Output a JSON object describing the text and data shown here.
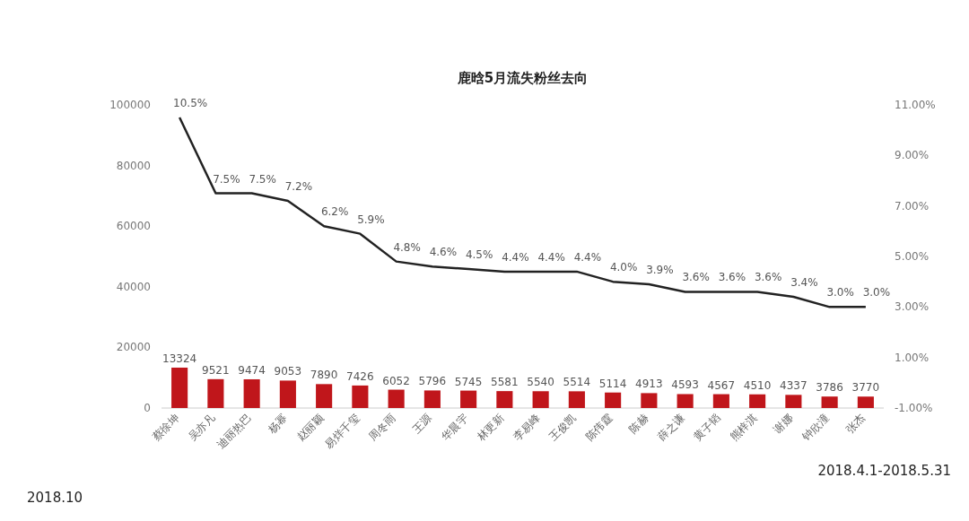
{
  "chart_data": {
    "type": "bar",
    "title": "鹿晗5月流失粉丝去向",
    "categories": [
      "蔡徐坤",
      "吴亦凡",
      "迪丽热巴",
      "杨幂",
      "赵丽颖",
      "易烊千玺",
      "周冬雨",
      "王源",
      "华晨宇",
      "林更新",
      "李易峰",
      "王俊凯",
      "陈伟霆",
      "陈赫",
      "薛之谦",
      "黄子韬",
      "熊梓淇",
      "谢娜",
      "钟欣潼",
      "张杰"
    ],
    "series": [
      {
        "color": "#c0161b",
        "values": [
          13324,
          9521,
          9474,
          9053,
          7890,
          7426,
          6052,
          5796,
          5745,
          5581,
          5540,
          5514,
          5114,
          4913,
          4593,
          4567,
          4510,
          4337,
          3786,
          3770
        ],
        "value_labels": [
          "13324",
          "9521",
          "9474",
          "9053",
          "7890",
          "7426",
          "6052",
          "5796",
          "5745",
          "5581",
          "5540",
          "5514",
          "5114",
          "4913",
          "4593",
          "4567",
          "4510",
          "4337",
          "3786",
          "3770"
        ]
      },
      {
        "type": "line",
        "axis": "y2",
        "color": "#222222",
        "values": [
          10.5,
          7.5,
          7.5,
          7.2,
          6.2,
          5.9,
          4.8,
          4.6,
          4.5,
          4.4,
          4.4,
          4.4,
          4.0,
          3.9,
          3.6,
          3.6,
          3.6,
          3.4,
          3.0,
          3.0
        ],
        "value_labels": [
          "10.5%",
          "7.5%",
          "7.5%",
          "7.2%",
          "6.2%",
          "5.9%",
          "4.8%",
          "4.6%",
          "4.5%",
          "4.4%",
          "4.4%",
          "4.4%",
          "4.0%",
          "3.9%",
          "3.6%",
          "3.6%",
          "3.6%",
          "3.4%",
          "3.0%",
          "3.0%"
        ]
      }
    ],
    "ylim": [
      0,
      100000
    ],
    "yticks": [
      0,
      20000,
      40000,
      60000,
      80000,
      100000
    ],
    "y2lim": [
      -1,
      11
    ],
    "y2ticks": [
      {
        "value": -1,
        "label": "-1.00%"
      },
      {
        "value": 1,
        "label": "1.00%"
      },
      {
        "value": 3,
        "label": "3.00%"
      },
      {
        "value": 5,
        "label": "5.00%"
      },
      {
        "value": 7,
        "label": "7.00%"
      },
      {
        "value": 9,
        "label": "9.00%"
      },
      {
        "value": 11,
        "label": "11.00%"
      }
    ],
    "annotations": [
      "2018.4.1-2018.5.31",
      "2018.10"
    ]
  }
}
